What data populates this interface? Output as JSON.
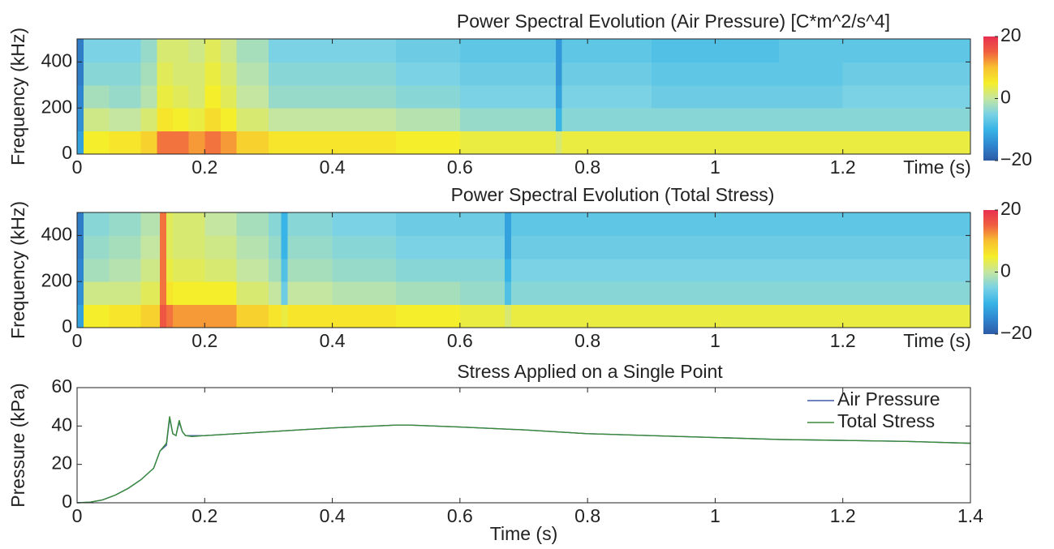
{
  "chart_data": [
    {
      "type": "heatmap",
      "title": "Power Spectral Evolution (Air Pressure) [C*m^2/s^4]",
      "xlabel": "Time (s)",
      "ylabel": "Frequency (kHz)",
      "x": [
        0,
        0.01,
        0.05,
        0.1,
        0.125,
        0.15,
        0.175,
        0.2,
        0.225,
        0.25,
        0.3,
        0.4,
        0.5,
        0.6,
        0.7,
        0.75,
        0.76,
        0.8,
        0.9,
        1.0,
        1.1,
        1.2,
        1.3,
        1.4
      ],
      "y": [
        0,
        100,
        200,
        300,
        400,
        500
      ],
      "values": [
        [
          -12,
          5,
          6,
          8,
          14,
          14,
          12,
          14,
          12,
          8,
          6,
          6,
          5,
          4,
          4,
          2,
          4,
          4,
          4,
          4,
          4,
          4,
          4
        ],
        [
          -14,
          1,
          0,
          2,
          6,
          5,
          4,
          7,
          5,
          2,
          0,
          0,
          -1,
          -3,
          -3,
          -10,
          -4,
          -4,
          -4,
          -4,
          -4,
          -4,
          -4
        ],
        [
          -15,
          -2,
          -3,
          -1,
          4,
          3,
          2,
          5,
          3,
          0,
          -3,
          -3,
          -4,
          -5,
          -5,
          -12,
          -5,
          -5,
          -6,
          -6,
          -6,
          -5,
          -5
        ],
        [
          -16,
          -4,
          -4,
          -2,
          3,
          2,
          2,
          4,
          2,
          -1,
          -4,
          -4,
          -5,
          -6,
          -6,
          -13,
          -6,
          -6,
          -7,
          -7,
          -7,
          -6,
          -6
        ],
        [
          -16,
          -5,
          -5,
          -3,
          2,
          2,
          1,
          3,
          1,
          -2,
          -5,
          -5,
          -6,
          -7,
          -7,
          -13,
          -7,
          -7,
          -8,
          -8,
          -7,
          -7,
          -7
        ]
      ],
      "xlim": [
        0,
        1.4
      ],
      "xticks": [
        0,
        0.2,
        0.4,
        0.6,
        0.8,
        1,
        1.2
      ],
      "ylim": [
        0,
        500
      ],
      "yticks": [
        0,
        200,
        400
      ],
      "clim": [
        -20,
        20
      ],
      "cticks": [
        {
          "value": -20,
          "label": "−20"
        },
        0,
        20
      ],
      "colors": [
        "#2d5aa5",
        "#2f86d0",
        "#38b4e6",
        "#7ad2e4",
        "#c4e6a0",
        "#f5ee2a",
        "#f8c030",
        "#f06040",
        "#e83050"
      ]
    },
    {
      "type": "heatmap",
      "title": "Power Spectral Evolution (Total Stress)",
      "xlabel": "Time (s)",
      "ylabel": "Frequency (kHz)",
      "x": [
        0,
        0.01,
        0.05,
        0.1,
        0.13,
        0.14,
        0.15,
        0.2,
        0.25,
        0.3,
        0.32,
        0.33,
        0.4,
        0.5,
        0.6,
        0.67,
        0.68,
        0.8,
        0.9,
        1.0,
        1.1,
        1.2,
        1.3,
        1.4
      ],
      "y": [
        0,
        100,
        200,
        300,
        400,
        500
      ],
      "values": [
        [
          -12,
          5,
          6,
          8,
          16,
          14,
          12,
          12,
          8,
          6,
          4,
          6,
          6,
          5,
          4,
          2,
          4,
          4,
          4,
          4,
          4,
          4,
          4
        ],
        [
          -14,
          1,
          1,
          3,
          14,
          6,
          5,
          5,
          2,
          0,
          -6,
          0,
          -1,
          -2,
          -3,
          -8,
          -4,
          -4,
          -4,
          -4,
          -4,
          -4,
          -4
        ],
        [
          -15,
          -2,
          -1,
          1,
          14,
          4,
          3,
          2,
          0,
          -2,
          -8,
          -2,
          -3,
          -4,
          -4,
          -10,
          -5,
          -5,
          -5,
          -5,
          -5,
          -5,
          -5
        ],
        [
          -16,
          -3,
          -2,
          0,
          14,
          3,
          2,
          1,
          -1,
          -3,
          -10,
          -3,
          -4,
          -5,
          -5,
          -12,
          -6,
          -6,
          -6,
          -6,
          -6,
          -6,
          -6
        ],
        [
          -16,
          -4,
          -3,
          -1,
          14,
          3,
          2,
          0,
          -2,
          -4,
          -10,
          -4,
          -5,
          -6,
          -6,
          -12,
          -7,
          -7,
          -7,
          -7,
          -7,
          -7,
          -7
        ]
      ],
      "xlim": [
        0,
        1.4
      ],
      "xticks": [
        0,
        0.2,
        0.4,
        0.6,
        0.8,
        1,
        1.2
      ],
      "ylim": [
        0,
        500
      ],
      "yticks": [
        0,
        200,
        400
      ],
      "clim": [
        -20,
        20
      ],
      "cticks": [
        {
          "value": -20,
          "label": "−20"
        },
        0,
        20
      ],
      "colors": [
        "#2d5aa5",
        "#2f86d0",
        "#38b4e6",
        "#7ad2e4",
        "#c4e6a0",
        "#f5ee2a",
        "#f8c030",
        "#f06040",
        "#e83050"
      ]
    },
    {
      "type": "line",
      "title": "Stress Applied on a Single Point",
      "xlabel": "Time (s)",
      "ylabel": "Pressure (kPa)",
      "x": [
        0,
        0.02,
        0.04,
        0.06,
        0.08,
        0.1,
        0.12,
        0.13,
        0.14,
        0.145,
        0.15,
        0.155,
        0.16,
        0.165,
        0.17,
        0.18,
        0.2,
        0.25,
        0.3,
        0.4,
        0.5,
        0.52,
        0.6,
        0.7,
        0.8,
        0.9,
        1.0,
        1.1,
        1.2,
        1.3,
        1.4
      ],
      "series": [
        {
          "name": "Air Pressure",
          "color": "#3d5ba8",
          "values": [
            0,
            0.3,
            1.5,
            4,
            7.5,
            12,
            18,
            27,
            30,
            44,
            36,
            35,
            42,
            37,
            35,
            35,
            35,
            36,
            37,
            39,
            40.5,
            40.5,
            39.5,
            38,
            36,
            35,
            34,
            33,
            32.5,
            32,
            31
          ]
        },
        {
          "name": "Total Stress",
          "color": "#3a8a3a",
          "values": [
            0,
            0.3,
            1.5,
            4,
            7.5,
            12,
            18,
            27,
            31,
            45,
            36,
            35,
            43,
            37,
            35,
            34.5,
            35,
            36,
            37,
            39,
            40.5,
            40.5,
            39.5,
            38,
            36,
            35,
            34,
            33,
            32.5,
            32,
            31
          ]
        }
      ],
      "xlim": [
        0,
        1.4
      ],
      "xticks": [
        0,
        0.2,
        0.4,
        0.6,
        0.8,
        1,
        1.2,
        1.4
      ],
      "ylim": [
        0,
        60
      ],
      "yticks": [
        0,
        20,
        40,
        60
      ],
      "legend": "upper right"
    }
  ]
}
